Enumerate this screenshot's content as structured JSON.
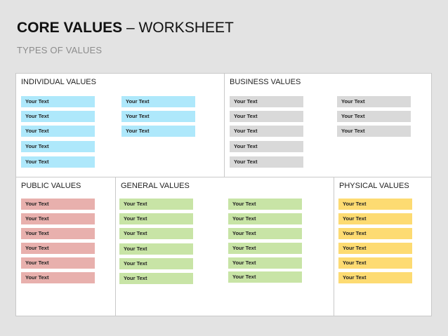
{
  "title": {
    "bold": "CORE VALUES",
    "rest": " – WORKSHEET"
  },
  "subtitle": "TYPES OF VALUES",
  "sections": {
    "individual": {
      "title": "INDIVIDUAL VALUES",
      "items": [
        "Your Text",
        "Your Text",
        "Your Text",
        "Your Text",
        "Your Text",
        "Your Text",
        "Your Text",
        "Your Text"
      ]
    },
    "business": {
      "title": "BUSINESS VALUES",
      "items": [
        "Your Text",
        "Your Text",
        "Your Text",
        "Your Text",
        "Your Text",
        "Your Text",
        "Your Text",
        "Your Text"
      ]
    },
    "public": {
      "title": "PUBLIC VALUES",
      "items": [
        "Your Text",
        "Your Text",
        "Your Text",
        "Your Text",
        "Your Text",
        "Your Text"
      ]
    },
    "general": {
      "title": "GENERAL VALUES",
      "items": [
        "Your Text",
        "Your Text",
        "Your Text",
        "Your Text",
        "Your Text",
        "Your Text",
        "Your Text",
        "Your Text",
        "Your Text",
        "Your Text",
        "Your Text",
        "Your Text"
      ]
    },
    "physical": {
      "title": "PHYSICAL VALUES",
      "items": [
        "Your Text",
        "Your Text",
        "Your Text",
        "Your Text",
        "Your Text",
        "Your Text"
      ]
    }
  },
  "colors": {
    "individual": "#aee8fb",
    "business": "#d9d9d9",
    "public": "#e8b0ad",
    "general": "#c8e4a6",
    "physical": "#fddb72"
  }
}
